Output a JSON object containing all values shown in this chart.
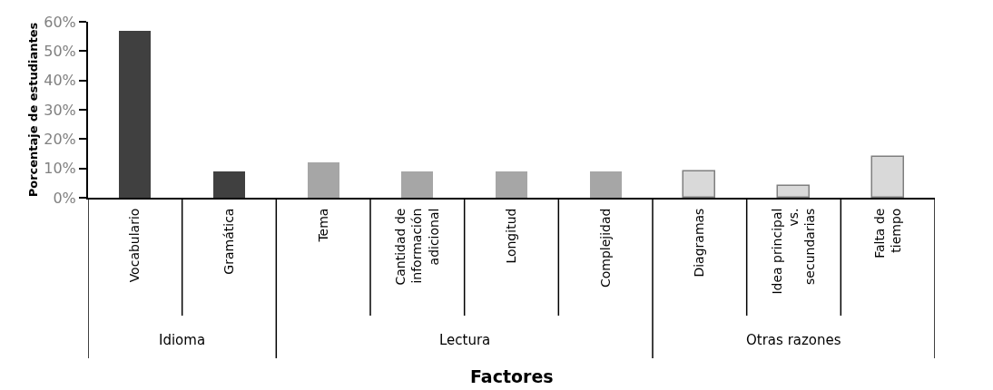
{
  "chart_data": {
    "type": "bar",
    "xlabel": "Factores",
    "ylabel": "Porcentaje de estudiantes",
    "categories": [
      "Vocabulario",
      "Gramática",
      "Tema",
      "Cantidad de\ninformación\nadicional",
      "Longitud",
      "Complejidad",
      "Diagramas",
      "Idea principal\nvs.\nsecundarias",
      "Falta de\ntiempo"
    ],
    "series": [
      {
        "color": "#404040",
        "values": [
          57,
          9,
          null,
          null,
          null,
          null,
          null,
          null,
          null
        ]
      },
      {
        "color": "#a6a6a6",
        "values": [
          null,
          null,
          12,
          9,
          9,
          9,
          null,
          null,
          null
        ]
      },
      {
        "color": "#d9d9d9",
        "values": [
          null,
          null,
          null,
          null,
          null,
          null,
          9,
          4,
          14
        ]
      }
    ],
    "annotations": [
      "Idioma",
      "Lectura",
      "Otras razones"
    ],
    "ylim": [
      0,
      60
    ],
    "yticks": [
      {
        "value": 0,
        "label": "0%"
      },
      {
        "value": 10,
        "label": "10%"
      },
      {
        "value": 20,
        "label": "20%"
      },
      {
        "value": 30,
        "label": "30%"
      },
      {
        "value": 40,
        "label": "40%"
      },
      {
        "value": 50,
        "label": "50%"
      },
      {
        "value": 60,
        "label": "60%"
      }
    ],
    "grid": false,
    "legend": false
  }
}
